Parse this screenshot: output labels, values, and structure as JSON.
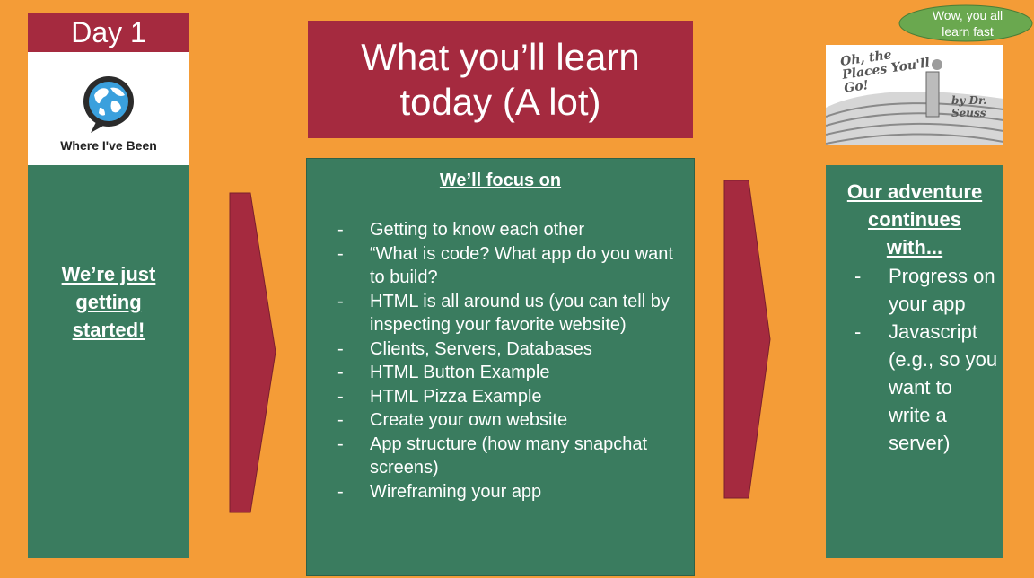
{
  "left": {
    "day_label": "Day 1",
    "logo_text": "Where I've Been",
    "message_lines": [
      "We’re just",
      "getting",
      "started!"
    ]
  },
  "center": {
    "title_lines": [
      "What you’ll learn",
      "today (A lot)"
    ],
    "heading": "We’ll focus on",
    "items": [
      "Getting to know each other",
      "“What is code? What app do you want to build?",
      "HTML is all around us (you can tell by inspecting your favorite website)",
      "Clients, Servers, Databases",
      "HTML Button Example",
      "HTML Pizza Example",
      "Create your own website",
      "App structure (how many snapchat screens)",
      "Wireframing your app"
    ]
  },
  "right": {
    "speech_bubble": "Wow, you all learn fast",
    "book_title": "Oh, the Places You'll Go!",
    "book_author": "by Dr. Seuss",
    "heading_lines": [
      "Our adventure",
      "continues",
      "with..."
    ],
    "items": [
      "Progress on your app",
      "Javascript (e.g., so you want to write a server)"
    ]
  },
  "colors": {
    "background": "#f49c37",
    "maroon": "#a52a3f",
    "green": "#3a7c5f",
    "bubble": "#6aa84f"
  }
}
